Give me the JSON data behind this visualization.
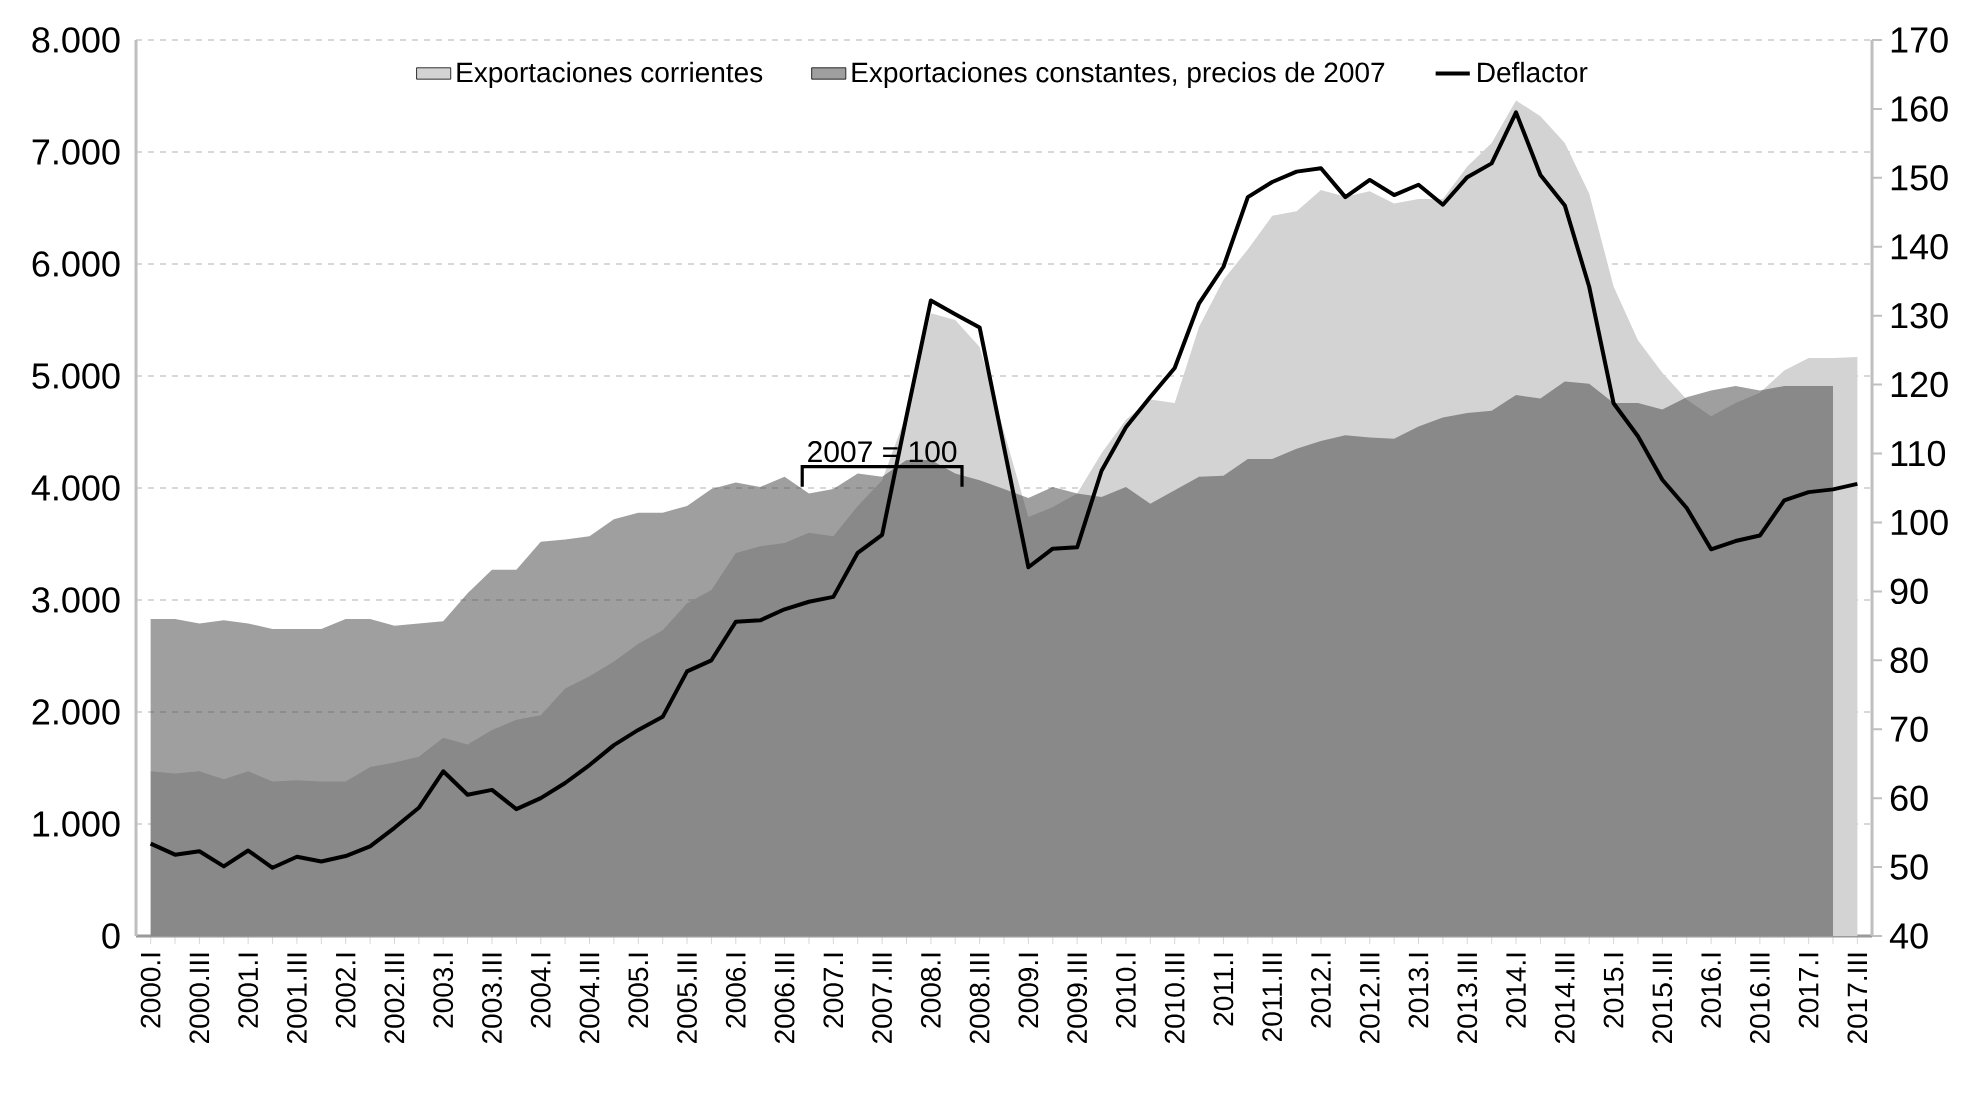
{
  "chart_data": {
    "type": "area",
    "categories": [
      "2000.I",
      null,
      "2000.III",
      null,
      "2001.I",
      null,
      "2001.III",
      null,
      "2002.I",
      null,
      "2002.III",
      null,
      "2003.I",
      null,
      "2003.III",
      null,
      "2004.I",
      null,
      "2004.III",
      null,
      "2005.I",
      null,
      "2005.III",
      null,
      "2006.I",
      null,
      "2006.III",
      null,
      "2007.I",
      null,
      "2007.III",
      null,
      "2008.I",
      null,
      "2008.III",
      null,
      "2009.I",
      null,
      "2009.III",
      null,
      "2010.I",
      null,
      "2010.III",
      null,
      "2011.I",
      null,
      "2011.III",
      null,
      "2012.I",
      null,
      "2012.III",
      null,
      "2013.I",
      null,
      "2013.III",
      null,
      "2014.I",
      null,
      "2014.III",
      null,
      "2015.I",
      null,
      "2015.III",
      null,
      "2016.I",
      null,
      "2016.III",
      null,
      "2017.I",
      null,
      "2017.III"
    ],
    "series": [
      {
        "name": "Exportaciones corrientes",
        "type": "area",
        "color": "#d3d3d3",
        "values": [
          1470,
          1450,
          1470,
          1400,
          1470,
          1380,
          1390,
          1380,
          1380,
          1510,
          1550,
          1600,
          1770,
          1710,
          1840,
          1930,
          1970,
          2210,
          2320,
          2450,
          2610,
          2730,
          2970,
          3090,
          3420,
          3480,
          3510,
          3600,
          3570,
          3840,
          4070,
          4660,
          5560,
          5500,
          5260,
          4500,
          3740,
          3830,
          3950,
          4310,
          4610,
          4790,
          4760,
          5440,
          5860,
          6130,
          6430,
          6470,
          6660,
          6600,
          6650,
          6540,
          6580,
          6580,
          6870,
          7080,
          7460,
          7320,
          7080,
          6630,
          5800,
          5320,
          5030,
          4790,
          4640,
          4760,
          4850,
          5050,
          5160,
          5160,
          5170
        ]
      },
      {
        "name": "Exportaciones constantes, precios de 2007",
        "type": "area",
        "color": "#404040",
        "values": [
          2830,
          2830,
          2790,
          2820,
          2790,
          2740,
          2740,
          2740,
          2830,
          2830,
          2770,
          2790,
          2810,
          3060,
          3270,
          3270,
          3520,
          3540,
          3570,
          3720,
          3780,
          3780,
          3840,
          3990,
          4050,
          4010,
          4100,
          3950,
          3990,
          4130,
          4100,
          4250,
          4250,
          4130,
          4070,
          3990,
          3910,
          4010,
          3950,
          3920,
          4010,
          3860,
          3980,
          4100,
          4110,
          4260,
          4260,
          4350,
          4420,
          4470,
          4450,
          4440,
          4550,
          4630,
          4670,
          4690,
          4830,
          4800,
          4950,
          4930,
          4760,
          4760,
          4700,
          4810,
          4870,
          4910,
          4870,
          4910,
          4910,
          4910,
          null
        ]
      },
      {
        "name": "Deflactor",
        "type": "line",
        "axis": "y2",
        "color": "#000000",
        "values": [
          53.4,
          51.8,
          52.3,
          50.1,
          52.4,
          49.9,
          51.5,
          50.8,
          51.6,
          53.0,
          55.7,
          58.6,
          63.9,
          60.5,
          61.2,
          58.4,
          60.0,
          62.2,
          64.8,
          67.7,
          69.9,
          71.8,
          78.4,
          80.0,
          85.6,
          85.8,
          87.4,
          88.5,
          89.2,
          95.6,
          98.2,
          115.4,
          132.2,
          130.2,
          128.3,
          110.9,
          93.5,
          96.2,
          96.4,
          107.5,
          113.8,
          118.2,
          122.4,
          131.8,
          137.1,
          147.2,
          149.4,
          150.9,
          151.4,
          147.2,
          149.7,
          147.5,
          149.0,
          146.1,
          150.1,
          152.1,
          159.5,
          150.4,
          146.0,
          134.2,
          117.3,
          112.5,
          106.2,
          102.1,
          96.1,
          97.3,
          98.1,
          103.2,
          104.4,
          104.8,
          105.6
        ]
      }
    ],
    "ylim": [
      0,
      8000
    ],
    "yticks": [
      0,
      {
        "value": 1000,
        "label": "1.000"
      },
      {
        "value": 2000,
        "label": "2.000"
      },
      {
        "value": 3000,
        "label": "3.000"
      },
      {
        "value": 4000,
        "label": "4.000"
      },
      {
        "value": 5000,
        "label": "5.000"
      },
      {
        "value": 6000,
        "label": "6.000"
      },
      {
        "value": 7000,
        "label": "7.000"
      },
      {
        "value": 8000,
        "label": "8.000"
      }
    ],
    "y2lim": [
      40,
      170
    ],
    "y2ticks": [
      40,
      50,
      60,
      70,
      80,
      90,
      100,
      110,
      120,
      130,
      140,
      150,
      160,
      170
    ],
    "annotations": [
      {
        "text": "2007 = 100",
        "x": "2007.III",
        "y": 4190
      }
    ],
    "grid": "y",
    "legend": "top"
  }
}
